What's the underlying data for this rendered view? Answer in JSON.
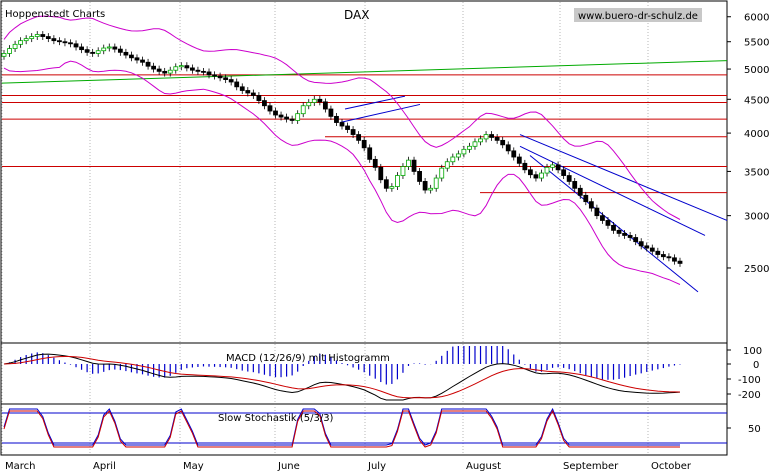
{
  "header": {
    "source": "Hoppenstedt Charts",
    "title": "DAX",
    "url": "www.buero-dr-schulz.de"
  },
  "indicators": {
    "macd_label": "MACD (12/26/9) mit Histogramm",
    "stoch_label": "Slow Stochastik (5/3/3)"
  },
  "chart_data": {
    "type": "candlestick",
    "title": "DAX",
    "y_ticks": [
      6000,
      5500,
      5000,
      4500,
      4000,
      3500,
      3000,
      2500
    ],
    "ylim": [
      2100,
      6100
    ],
    "y_scale": "log",
    "x_tick_labels": [
      "March",
      "April",
      "May",
      "June",
      "July",
      "August",
      "September",
      "October"
    ],
    "macd_ticks": [
      "100",
      "0",
      "-100",
      "-200"
    ],
    "stoch_ticks": [
      "50"
    ],
    "support_resistance_levels": [
      4900,
      4560,
      4450,
      4200,
      3950,
      3560,
      3250
    ],
    "colors": {
      "up_candle": "#00aa00",
      "down_candle": "#000000",
      "resistance": "#cc0000",
      "bollinger": "#cc00cc",
      "trend_long": "#00aa00",
      "trend_channel": "#0000cc",
      "macd_hist": "#0000cc",
      "stoch_line": "#0000cc",
      "signal": "#cc0000"
    },
    "closes": [
      5280,
      5370,
      5450,
      5520,
      5560,
      5600,
      5640,
      5600,
      5560,
      5520,
      5500,
      5480,
      5460,
      5400,
      5350,
      5300,
      5280,
      5330,
      5380,
      5400,
      5360,
      5300,
      5250,
      5200,
      5160,
      5120,
      5050,
      5000,
      4960,
      4930,
      4980,
      5040,
      5060,
      5020,
      4980,
      4960,
      4950,
      4900,
      4880,
      4850,
      4820,
      4780,
      4700,
      4640,
      4600,
      4560,
      4480,
      4400,
      4320,
      4260,
      4230,
      4200,
      4180,
      4280,
      4400,
      4450,
      4500,
      4460,
      4350,
      4240,
      4150,
      4100,
      4050,
      3980,
      3900,
      3800,
      3650,
      3550,
      3400,
      3300,
      3320,
      3450,
      3560,
      3640,
      3500,
      3380,
      3280,
      3300,
      3420,
      3540,
      3620,
      3680,
      3720,
      3780,
      3820,
      3880,
      3920,
      3980,
      3940,
      3900,
      3840,
      3760,
      3680,
      3600,
      3520,
      3460,
      3420,
      3480,
      3550,
      3580,
      3520,
      3450,
      3380,
      3300,
      3220,
      3150,
      3080,
      3000,
      2950,
      2900,
      2850,
      2820,
      2800,
      2780,
      2740,
      2700,
      2680,
      2650,
      2620,
      2600,
      2590,
      2560,
      2540
    ]
  }
}
